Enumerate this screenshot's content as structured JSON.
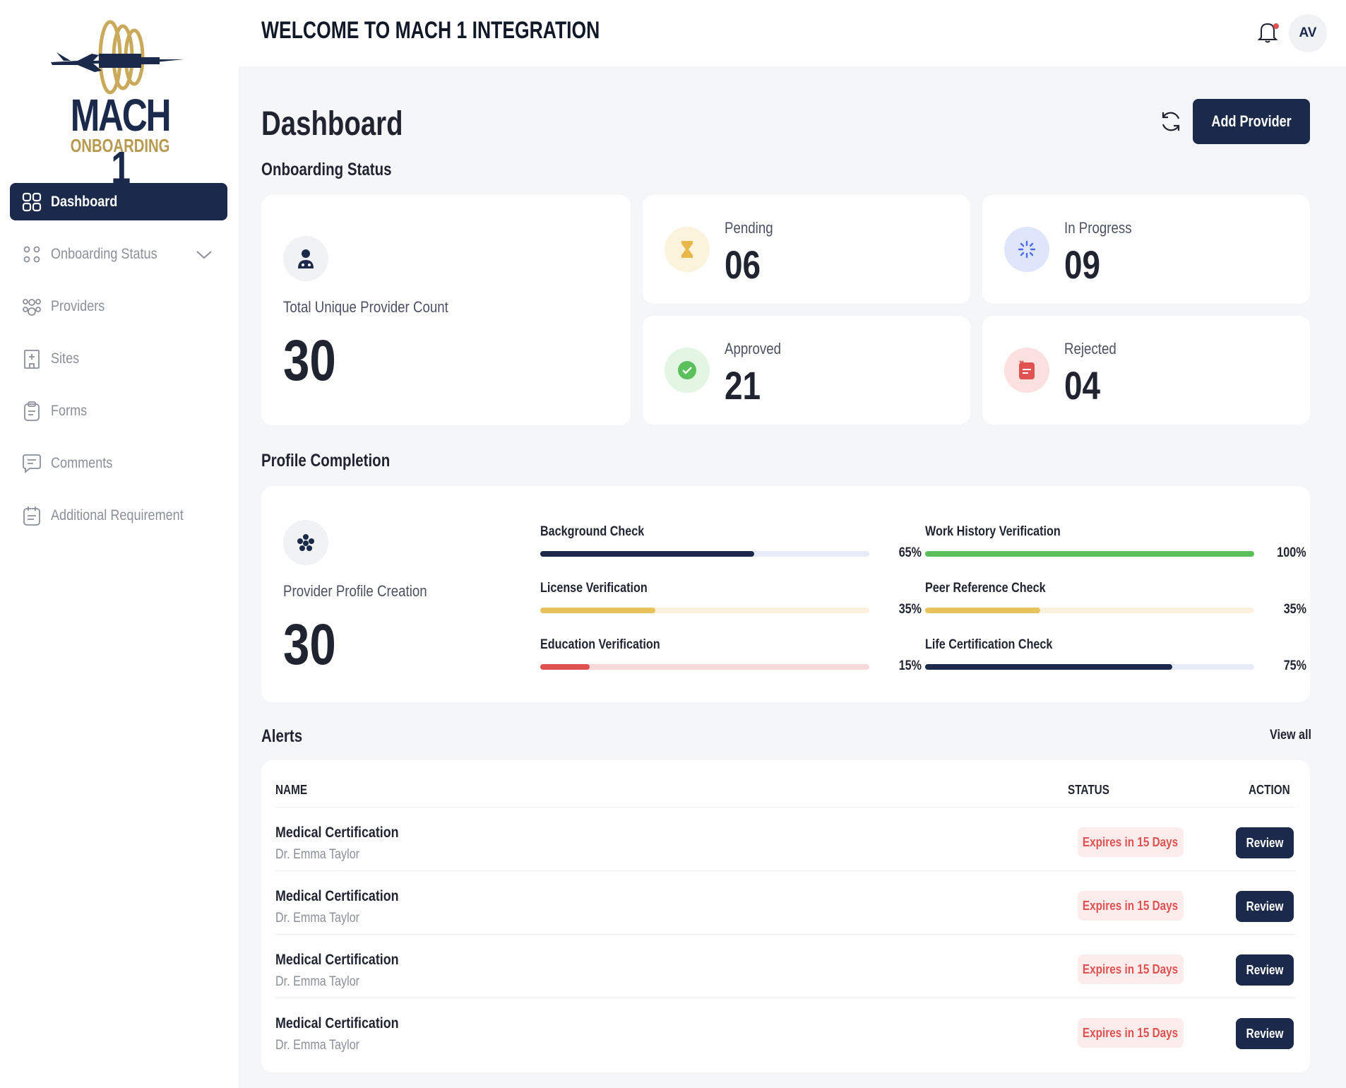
{
  "brand": {
    "title": "MACH 1",
    "subtitle": "ONBOARDING"
  },
  "sidebar": {
    "items": [
      {
        "label": "Dashboard",
        "icon": "grid-icon",
        "active": true
      },
      {
        "label": "Onboarding Status",
        "icon": "dots-grid-icon",
        "active": false
      },
      {
        "label": "Providers",
        "icon": "users-icon",
        "active": false
      },
      {
        "label": "Sites",
        "icon": "building-icon",
        "active": false
      },
      {
        "label": "Forms",
        "icon": "clipboard-icon",
        "active": false
      },
      {
        "label": "Comments",
        "icon": "comment-icon",
        "active": false
      },
      {
        "label": "Additional Requirement",
        "icon": "calendar-list-icon",
        "active": false
      }
    ]
  },
  "header": {
    "welcome": "WELCOME TO MACH 1 INTEGRATION",
    "avatar_initials": "AV"
  },
  "page": {
    "title": "Dashboard",
    "add_button": "Add Provider"
  },
  "onboarding": {
    "section_title": "Onboarding Status",
    "total": {
      "label": "Total Unique Provider Count",
      "value": "30"
    },
    "pending": {
      "label": "Pending",
      "value": "06",
      "color": "#e8b84a"
    },
    "in_progress": {
      "label": "In Progress",
      "value": "09",
      "color": "#4a6cf0"
    },
    "approved": {
      "label": "Approved",
      "value": "21",
      "color": "#5bbf5b"
    },
    "rejected": {
      "label": "Rejected",
      "value": "04",
      "color": "#e05252"
    }
  },
  "profile": {
    "section_title": "Profile Completion",
    "label": "Provider Profile Creation",
    "value": "30",
    "checks": [
      {
        "label": "Background Check",
        "percent_text": "65%",
        "percent": 65,
        "color": "#1b2a4a",
        "track": "#e6ebf7"
      },
      {
        "label": "Work History Verification",
        "percent_text": "100%",
        "percent": 100,
        "color": "#5bbf5b",
        "track": "#e6f5e6"
      },
      {
        "label": "License Verification",
        "percent_text": "35%",
        "percent": 35,
        "color": "#e8c25a",
        "track": "#fbf1dc"
      },
      {
        "label": "Peer Reference Check",
        "percent_text": "35%",
        "percent": 35,
        "color": "#e8c25a",
        "track": "#fbf1dc"
      },
      {
        "label": "Education Verification",
        "percent_text": "15%",
        "percent": 15,
        "color": "#e05252",
        "track": "#f8d8d8"
      },
      {
        "label": "Life Certification Check",
        "percent_text": "75%",
        "percent": 75,
        "color": "#1b2a4a",
        "track": "#e6ebf7"
      }
    ]
  },
  "alerts": {
    "section_title": "Alerts",
    "view_all": "View all",
    "columns": {
      "name": "NAME",
      "status": "STATUS",
      "action": "ACTION"
    },
    "rows": [
      {
        "title": "Medical Certification",
        "subtitle": "Dr. Emma Taylor",
        "status": "Expires in 15 Days",
        "action": "Review"
      },
      {
        "title": "Medical Certification",
        "subtitle": "Dr. Emma Taylor",
        "status": "Expires in 15 Days",
        "action": "Review"
      },
      {
        "title": "Medical Certification",
        "subtitle": "Dr. Emma Taylor",
        "status": "Expires in 15 Days",
        "action": "Review"
      },
      {
        "title": "Medical Certification",
        "subtitle": "Dr. Emma Taylor",
        "status": "Expires in 15 Days",
        "action": "Review"
      }
    ]
  },
  "colors": {
    "navy": "#1b2a4a",
    "gold": "#b89a4f",
    "background": "#f5f6f8"
  }
}
